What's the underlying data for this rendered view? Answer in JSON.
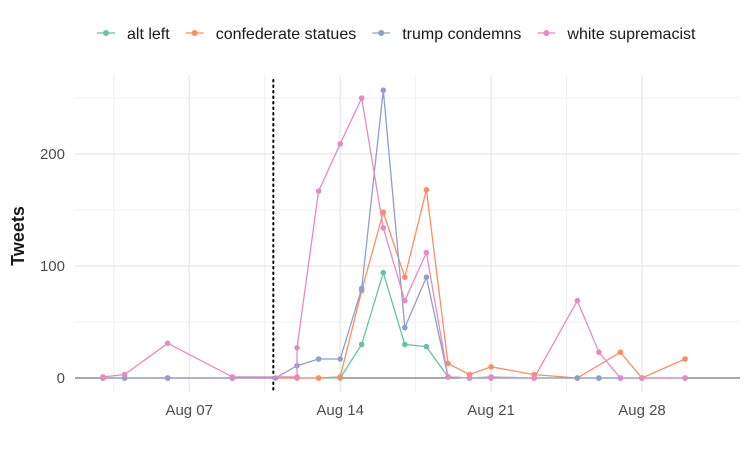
{
  "chart_data": {
    "type": "line",
    "ylabel": "Tweets",
    "xlabel": "",
    "x_ticks": [
      "Aug 07",
      "Aug 14",
      "Aug 21",
      "Aug 28"
    ],
    "x_tick_days": [
      7,
      14,
      21,
      28
    ],
    "xlim_days": [
      2,
      31
    ],
    "y_ticks": [
      0,
      100,
      200
    ],
    "ylim": [
      0,
      270
    ],
    "grid": true,
    "legend_position": "top",
    "vline_day": 10.9,
    "series": [
      {
        "name": "alt left",
        "color": "#66c2a5",
        "points": [
          [
            3,
            0
          ],
          [
            4,
            0
          ],
          [
            6,
            0
          ],
          [
            9,
            0
          ],
          [
            12,
            0
          ],
          [
            13,
            0
          ],
          [
            14,
            0
          ],
          [
            15,
            30
          ],
          [
            16,
            94
          ],
          [
            17,
            30
          ],
          [
            18,
            28
          ],
          [
            19,
            1
          ],
          [
            20,
            0
          ],
          [
            21,
            0
          ],
          [
            23,
            0
          ],
          [
            25,
            0
          ],
          [
            26,
            0
          ],
          [
            27,
            0
          ],
          [
            28,
            0
          ],
          [
            30,
            0
          ]
        ]
      },
      {
        "name": "confederate statues",
        "color": "#fc8d62",
        "points": [
          [
            3,
            0
          ],
          [
            4,
            0
          ],
          [
            6,
            0
          ],
          [
            9,
            0
          ],
          [
            12,
            0
          ],
          [
            13,
            0
          ],
          [
            14,
            1
          ],
          [
            15,
            78
          ],
          [
            16,
            148
          ],
          [
            17,
            90
          ],
          [
            18,
            168
          ],
          [
            19,
            13
          ],
          [
            20,
            3
          ],
          [
            21,
            10
          ],
          [
            23,
            3
          ],
          [
            25,
            0
          ],
          [
            27,
            23
          ],
          [
            28,
            0
          ],
          [
            30,
            17
          ]
        ]
      },
      {
        "name": "trump condemns",
        "color": "#8da0cb",
        "points": [
          [
            3,
            0
          ],
          [
            4,
            0
          ],
          [
            6,
            0
          ],
          [
            9,
            0
          ],
          [
            11,
            0
          ],
          [
            12,
            11
          ],
          [
            13,
            17
          ],
          [
            14,
            17
          ],
          [
            15,
            80
          ],
          [
            16,
            257
          ],
          [
            17,
            45
          ],
          [
            18,
            90
          ],
          [
            19,
            1
          ],
          [
            20,
            0
          ],
          [
            21,
            0
          ],
          [
            23,
            0
          ],
          [
            25,
            0
          ],
          [
            26,
            0
          ],
          [
            27,
            0
          ],
          [
            28,
            0
          ],
          [
            30,
            0
          ]
        ]
      },
      {
        "name": "white supremacist",
        "color": "#e78ac3",
        "points": [
          [
            3,
            1
          ],
          [
            4,
            3
          ],
          [
            6,
            31
          ],
          [
            9,
            1
          ],
          [
            12,
            1
          ],
          [
            12,
            27
          ],
          [
            13,
            167
          ],
          [
            14,
            209
          ],
          [
            15,
            250
          ],
          [
            16,
            134
          ],
          [
            17,
            69
          ],
          [
            18,
            112
          ],
          [
            19,
            1
          ],
          [
            20,
            0
          ],
          [
            21,
            1
          ],
          [
            23,
            0
          ],
          [
            25,
            69
          ],
          [
            26,
            23
          ],
          [
            27,
            0
          ],
          [
            28,
            0
          ],
          [
            30,
            0
          ]
        ]
      }
    ]
  }
}
